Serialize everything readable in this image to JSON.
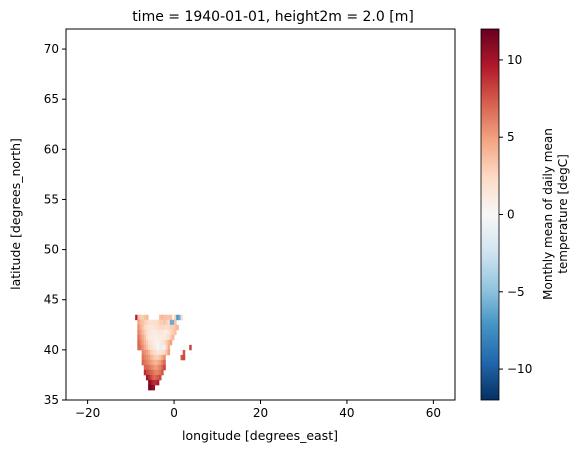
{
  "chart_data": {
    "type": "heatmap",
    "title": "time = 1940-01-01, height2m = 2.0 [m]",
    "xlabel": "longitude [degrees_east]",
    "ylabel": "latitude [degrees_north]",
    "xlim": [
      -25,
      65
    ],
    "ylim": [
      35,
      72
    ],
    "xticks": [
      -20,
      0,
      20,
      40,
      60
    ],
    "yticks": [
      35,
      40,
      45,
      50,
      55,
      60,
      65,
      70
    ],
    "colorbar": {
      "label_line1": "Monthly mean of daily mean",
      "label_line2": "temperature [degC]",
      "vmin": -12,
      "vmax": 12,
      "ticks": [
        -10,
        -5,
        0,
        5,
        10
      ],
      "cmap": "RdBu_r",
      "stops": [
        "#053061",
        "#2166ac",
        "#4393c3",
        "#92c5de",
        "#d1e5f0",
        "#f7f7f7",
        "#fddbc7",
        "#f4a582",
        "#d6604d",
        "#b2182b",
        "#67001f"
      ]
    },
    "grid_step_deg": 0.5,
    "cells": [
      {
        "lat": 43.0,
        "lon_start": -9.0,
        "values": [
          9.5,
          4,
          3,
          3,
          3.5,
          4
        ]
      },
      {
        "lat": 43.0,
        "lon_start": -3.5,
        "values": [
          3.5,
          4,
          3.5,
          3.5,
          3.5,
          3.5
        ]
      },
      {
        "lat": 43.0,
        "lon_start": 0.0,
        "values": [
          3,
          -7,
          -6,
          2
        ]
      },
      {
        "lat": 42.5,
        "lon_start": -8.5,
        "values": [
          5,
          4,
          3.5,
          3,
          2.5,
          2,
          2,
          2,
          2,
          2.5,
          3,
          3,
          3.5,
          3,
          2,
          -6,
          -6,
          3.5
        ]
      },
      {
        "lat": 42.0,
        "lon_start": -8.5,
        "values": [
          5.5,
          4.5,
          3.5,
          2.5,
          2,
          1.5,
          1.5,
          1.5,
          2,
          2,
          2.5,
          2.5,
          2.5,
          2,
          2.5,
          3,
          3,
          3.5,
          4
        ]
      },
      {
        "lat": 41.5,
        "lon_start": -8.5,
        "values": [
          6,
          5,
          4,
          3,
          2,
          1.5,
          1.5,
          1,
          1,
          1.5,
          1.5,
          1.5,
          1,
          1,
          1.5,
          2.5,
          3,
          3.5
        ]
      },
      {
        "lat": 41.0,
        "lon_start": -8.5,
        "values": [
          6.5,
          5.5,
          4.5,
          3.5,
          2,
          1.5,
          1,
          1,
          0.5,
          1,
          1,
          1,
          1,
          1.5,
          2,
          3,
          4
        ]
      },
      {
        "lat": 40.5,
        "lon_start": -8.5,
        "values": [
          7,
          6,
          5,
          4,
          3,
          2,
          1.5,
          1,
          0.5,
          0.5,
          1,
          1.5,
          2,
          3,
          4,
          5
        ]
      },
      {
        "lat": 40.0,
        "lon_start": -8.5,
        "values": [
          7,
          6.5,
          5.5,
          4.5,
          3.5,
          2.5,
          2,
          1.5,
          1,
          0,
          -1,
          -1,
          0.5,
          2.5,
          4.5
        ]
      },
      {
        "lat": 40.0,
        "lon_start": 3.5,
        "values": [
          8
        ]
      },
      {
        "lat": 39.5,
        "lon_start": -7.5,
        "values": [
          6,
          5.5,
          5,
          4,
          3,
          2.5,
          2,
          1.5,
          1.5,
          2,
          2.5,
          3.5,
          5
        ]
      },
      {
        "lat": 39.5,
        "lon_start": 2.0,
        "values": [
          7.5
        ]
      },
      {
        "lat": 39.0,
        "lon_start": -7.5,
        "values": [
          6.5,
          6,
          5.5,
          5,
          4,
          3.5,
          3,
          3,
          3.5,
          4.5,
          5.5
        ]
      },
      {
        "lat": 39.0,
        "lon_start": 1.5,
        "values": [
          7.5,
          8
        ]
      },
      {
        "lat": 38.5,
        "lon_start": -7.5,
        "values": [
          7,
          6.5,
          6,
          5.5,
          5,
          4.5,
          4,
          4.5,
          5,
          6,
          7
        ]
      },
      {
        "lat": 38.0,
        "lon_start": -7.0,
        "values": [
          7,
          7,
          6.5,
          6,
          5.5,
          5,
          5.5,
          6,
          7,
          8
        ]
      },
      {
        "lat": 37.5,
        "lon_start": -7.0,
        "values": [
          9,
          8,
          7.5,
          7,
          6.5,
          6,
          6,
          6.5,
          7.5
        ]
      },
      {
        "lat": 37.0,
        "lon_start": -6.5,
        "values": [
          10,
          9,
          8,
          7,
          7,
          7.5,
          8
        ]
      },
      {
        "lat": 36.5,
        "lon_start": -6.0,
        "values": [
          11,
          10,
          9,
          9,
          9.5
        ]
      },
      {
        "lat": 36.0,
        "lon_start": -6.0,
        "values": [
          11.5,
          11,
          10.5
        ]
      }
    ]
  }
}
